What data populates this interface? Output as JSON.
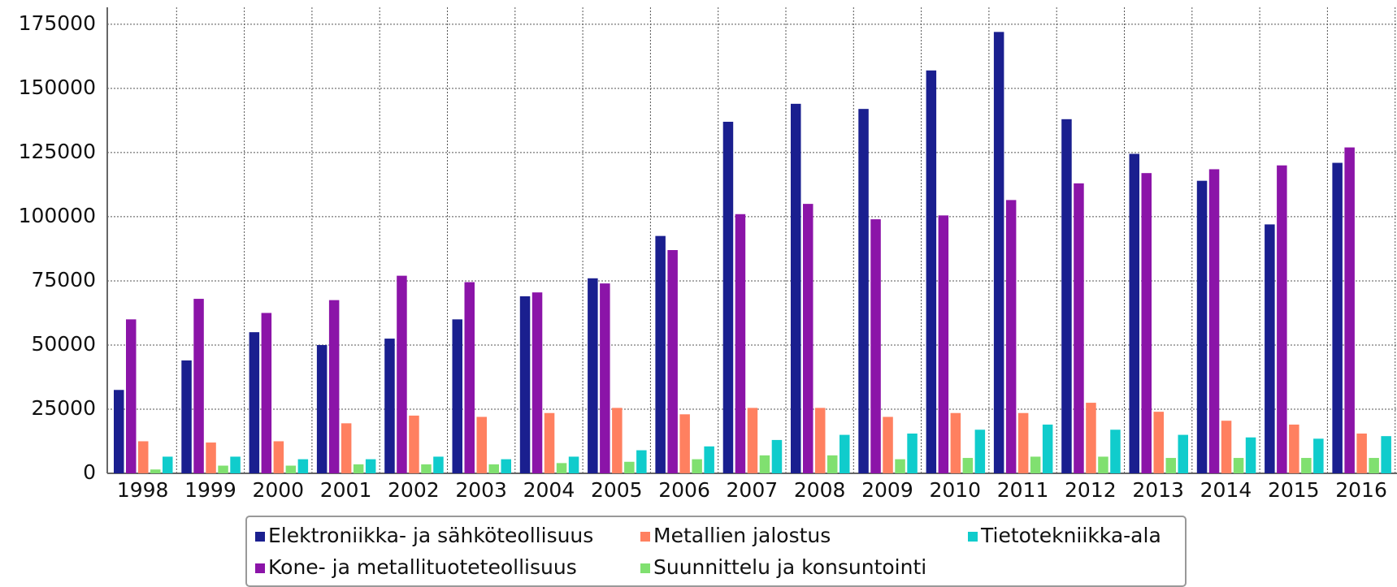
{
  "chart_data": {
    "type": "bar",
    "categories": [
      "1998",
      "1999",
      "2000",
      "2001",
      "2002",
      "2003",
      "2004",
      "2005",
      "2006",
      "2007",
      "2008",
      "2009",
      "2010",
      "2011",
      "2012",
      "2013",
      "2014",
      "2015",
      "2016"
    ],
    "series": [
      {
        "name": "Elektroniikka- ja sähköteollisuus",
        "color": "#1a1f8f",
        "values": [
          32500,
          44000,
          55000,
          50000,
          52500,
          60000,
          69000,
          76000,
          92500,
          137000,
          144000,
          142000,
          157000,
          172000,
          138000,
          124500,
          114000,
          97000,
          121000
        ]
      },
      {
        "name": "Kone- ja metallituoteteollisuus",
        "color": "#8b14a8",
        "values": [
          60000,
          68000,
          62500,
          67500,
          77000,
          74500,
          70500,
          74000,
          87000,
          101000,
          105000,
          99000,
          100500,
          106500,
          113000,
          117000,
          118500,
          120000,
          127000
        ]
      },
      {
        "name": "Metallien jalostus",
        "color": "#ff8060",
        "values": [
          12500,
          12000,
          12500,
          19500,
          22500,
          22000,
          23500,
          25500,
          23000,
          25500,
          25500,
          22000,
          23500,
          23500,
          27500,
          24000,
          20500,
          19000,
          15500
        ]
      },
      {
        "name": "Suunnittelu ja konsuntointi",
        "color": "#80e070",
        "values": [
          1500,
          3000,
          3000,
          3500,
          3500,
          3500,
          4000,
          4500,
          5500,
          7000,
          7000,
          5500,
          6000,
          6500,
          6500,
          6000,
          6000,
          6000,
          6000
        ]
      },
      {
        "name": "Tietotekniikka-ala",
        "color": "#10cccc",
        "values": [
          6500,
          6500,
          5500,
          5500,
          6500,
          5500,
          6500,
          9000,
          10500,
          13000,
          15000,
          15500,
          17000,
          19000,
          17000,
          15000,
          14000,
          13500,
          14500
        ]
      }
    ],
    "ylim": [
      0,
      181600
    ],
    "yticks": [
      0,
      25000,
      50000,
      75000,
      100000,
      125000,
      150000,
      175000
    ],
    "grid": true
  }
}
